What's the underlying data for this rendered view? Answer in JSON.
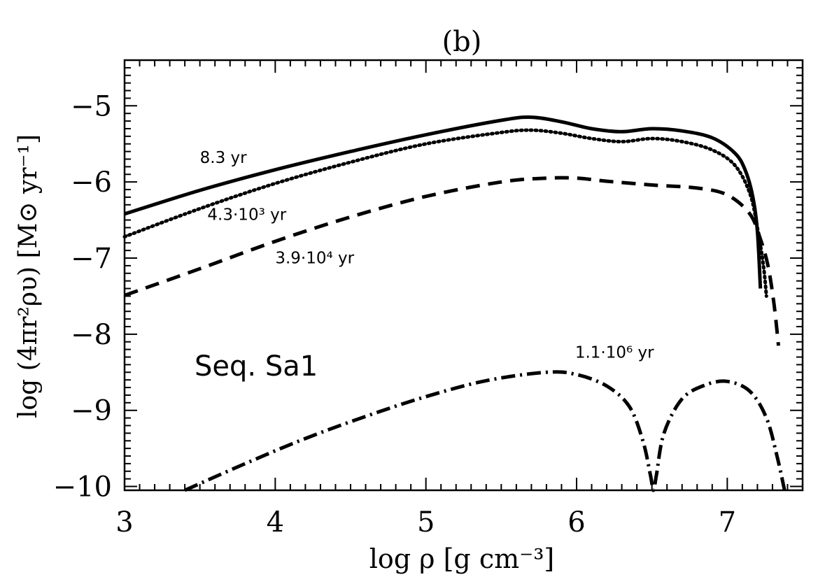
{
  "chart_data": {
    "type": "line",
    "title": "(b)",
    "xlabel": "log ρ [g cm⁻³]",
    "ylabel": "log (4πr²ρυ) [M⊙ yr⁻¹]",
    "xlim": [
      3,
      7.5
    ],
    "ylim": [
      -10.05,
      -4.4
    ],
    "xticks": [
      3,
      4,
      5,
      6,
      7
    ],
    "yticks": [
      -10,
      -9,
      -8,
      -7,
      -6,
      -5
    ],
    "grid": false,
    "annotation": "Seq. Sa1",
    "series": [
      {
        "name": "8.3 yr",
        "style": "solid",
        "x": [
          3.0,
          3.5,
          4.0,
          4.5,
          5.0,
          5.5,
          5.7,
          5.9,
          6.1,
          6.3,
          6.5,
          6.7,
          6.9,
          7.05,
          7.12,
          7.17,
          7.2,
          7.22
        ],
        "y": [
          -6.42,
          -6.11,
          -5.84,
          -5.6,
          -5.38,
          -5.19,
          -5.15,
          -5.21,
          -5.3,
          -5.34,
          -5.3,
          -5.33,
          -5.42,
          -5.62,
          -5.85,
          -6.2,
          -6.65,
          -7.4
        ]
      },
      {
        "name": "4.3·10³ yr",
        "style": "dotted",
        "x": [
          3.0,
          3.5,
          4.0,
          4.5,
          5.0,
          5.5,
          5.7,
          5.9,
          6.1,
          6.3,
          6.5,
          6.7,
          6.9,
          7.05,
          7.15,
          7.2,
          7.24,
          7.26
        ],
        "y": [
          -6.72,
          -6.35,
          -6.02,
          -5.74,
          -5.5,
          -5.35,
          -5.32,
          -5.36,
          -5.43,
          -5.47,
          -5.43,
          -5.47,
          -5.58,
          -5.78,
          -6.15,
          -6.6,
          -7.1,
          -7.5
        ]
      },
      {
        "name": "3.9·10⁴ yr",
        "style": "dashed",
        "x": [
          3.0,
          3.5,
          4.0,
          4.5,
          5.0,
          5.5,
          5.8,
          6.0,
          6.2,
          6.5,
          6.8,
          7.0,
          7.15,
          7.22,
          7.27,
          7.31,
          7.34
        ],
        "y": [
          -7.49,
          -7.14,
          -6.78,
          -6.46,
          -6.19,
          -6.0,
          -5.95,
          -5.95,
          -5.99,
          -6.04,
          -6.08,
          -6.17,
          -6.42,
          -6.75,
          -7.1,
          -7.6,
          -8.15
        ]
      },
      {
        "name": "1.1·10⁶ yr",
        "style": "dashdot",
        "x": [
          3.4,
          3.8,
          4.2,
          4.6,
          5.0,
          5.4,
          5.8,
          6.0,
          6.2,
          6.35,
          6.44,
          6.49,
          6.51,
          6.53,
          6.58,
          6.7,
          6.85,
          7.0,
          7.15,
          7.26,
          7.33,
          7.38
        ],
        "y": [
          -10.05,
          -9.7,
          -9.37,
          -9.08,
          -8.82,
          -8.61,
          -8.5,
          -8.53,
          -8.68,
          -8.95,
          -9.4,
          -9.85,
          -10.05,
          -9.85,
          -9.3,
          -8.85,
          -8.67,
          -8.62,
          -8.75,
          -9.1,
          -9.6,
          -10.05
        ]
      }
    ],
    "labels": [
      {
        "text": "8.3 yr",
        "x": 3.5,
        "y": -5.75
      },
      {
        "text": "4.3·10³ yr",
        "x": 3.55,
        "y": -6.5
      },
      {
        "text": "3.9·10⁴ yr",
        "x": 4.0,
        "y": -7.07
      },
      {
        "text": "1.1·10⁶ yr",
        "x": 5.99,
        "y": -8.31
      }
    ]
  }
}
